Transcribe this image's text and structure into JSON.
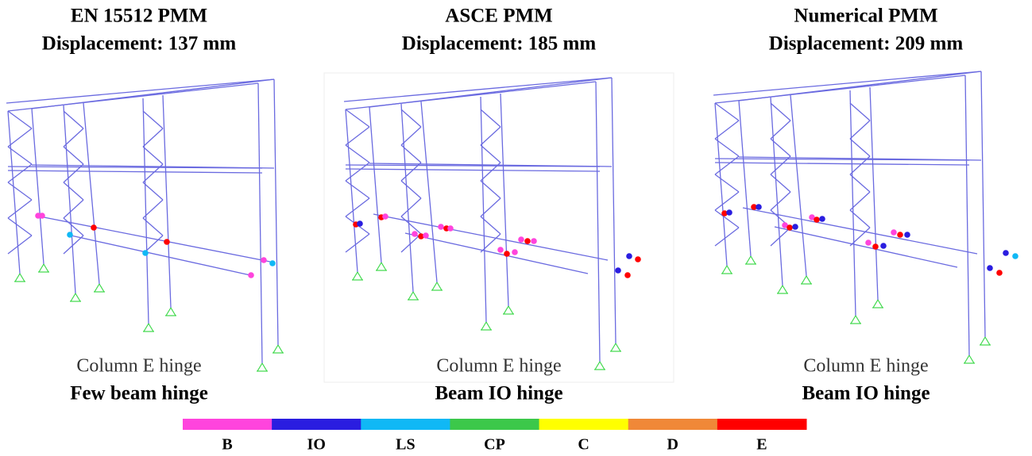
{
  "panels": [
    {
      "title": "EN 15512 PMM",
      "subtitle": "Displacement: 137 mm",
      "note": "Column E hinge",
      "caption": "Few beam hinge"
    },
    {
      "title": "ASCE PMM",
      "subtitle": "Displacement: 185 mm",
      "note": "Column E hinge",
      "caption": "Beam IO hinge"
    },
    {
      "title": "Numerical PMM",
      "subtitle": "Displacement: 209 mm",
      "note": "Column E hinge",
      "caption": "Beam IO hinge"
    }
  ],
  "legend": [
    {
      "label": "B",
      "color": "#ff44dd"
    },
    {
      "label": "IO",
      "color": "#2a1de0"
    },
    {
      "label": "LS",
      "color": "#10b8f5"
    },
    {
      "label": "CP",
      "color": "#3cc84a"
    },
    {
      "label": "C",
      "color": "#ffff00"
    },
    {
      "label": "D",
      "color": "#f08838"
    },
    {
      "label": "E",
      "color": "#ff0000"
    }
  ]
}
